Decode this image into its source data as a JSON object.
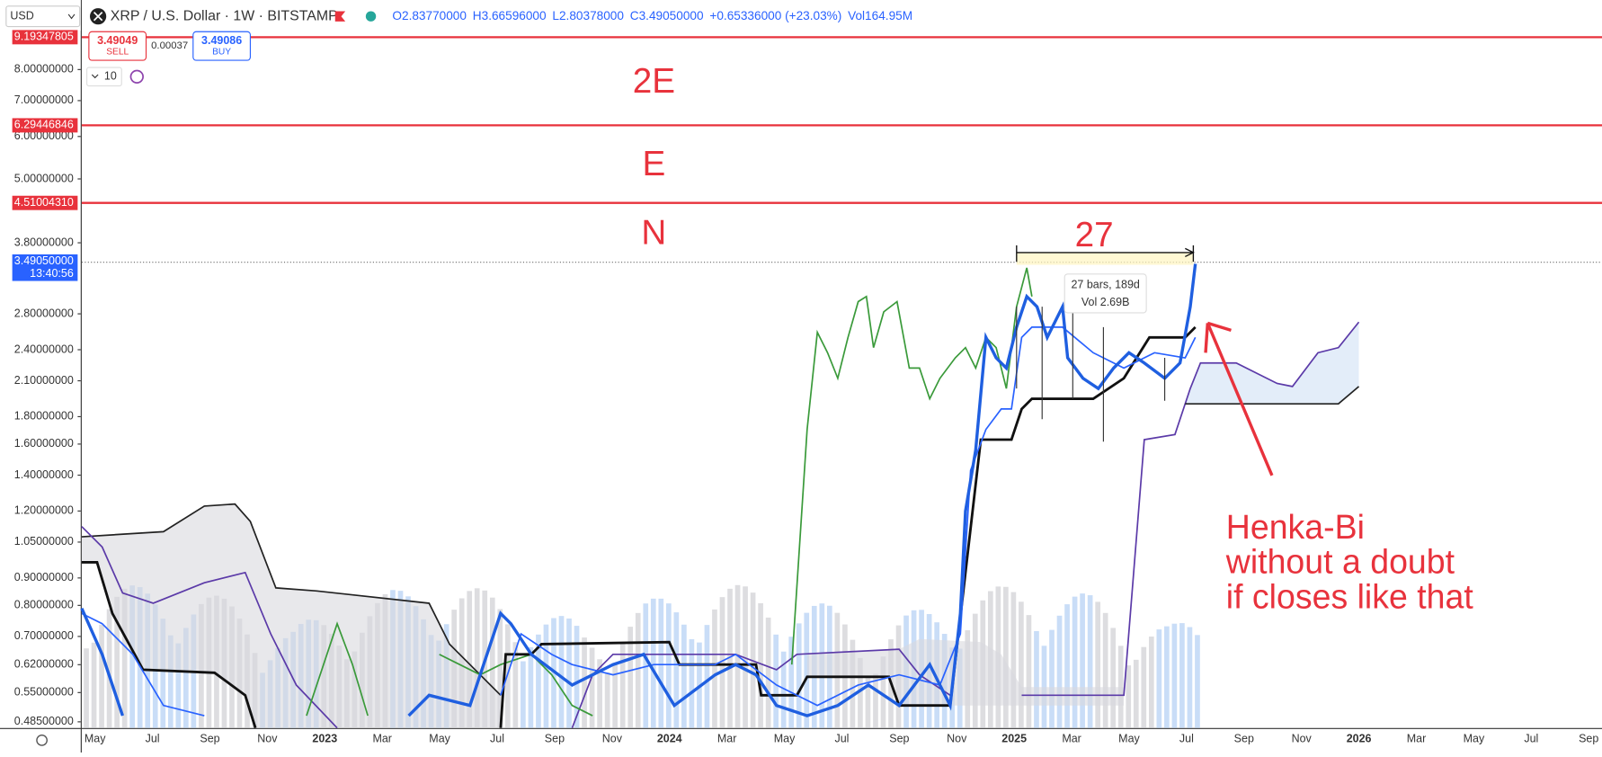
{
  "toolbar": {
    "currency": "USD",
    "symbol": "XRP / U.S. Dollar · 1W · BITSTAMP",
    "ohlc": [
      "O2.83770000",
      "H3.66596000",
      "L2.80378000",
      "C3.49050000",
      "+0.65336000 (+23.03%)",
      "Vol164.95M"
    ]
  },
  "trade": {
    "sell_price": "3.49049",
    "sell": "SELL",
    "spread": "0.00037",
    "buy_price": "3.49086",
    "buy": "BUY",
    "quantity": "10"
  },
  "price_axis": {
    "log": true,
    "ticks": [
      {
        "value": 8,
        "label": "8.00000000"
      },
      {
        "value": 7,
        "label": "7.00000000"
      },
      {
        "value": 6,
        "label": "6.00000000"
      },
      {
        "value": 5,
        "label": "5.00000000"
      },
      {
        "value": 3.8,
        "label": "3.80000000"
      },
      {
        "value": 2.8,
        "label": "2.80000000"
      },
      {
        "value": 2.4,
        "label": "2.40000000"
      },
      {
        "value": 2.1,
        "label": "2.10000000"
      },
      {
        "value": 1.8,
        "label": "1.80000000"
      },
      {
        "value": 1.6,
        "label": "1.60000000"
      },
      {
        "value": 1.4,
        "label": "1.40000000"
      },
      {
        "value": 1.2,
        "label": "1.20000000"
      },
      {
        "value": 1.05,
        "label": "1.05000000"
      },
      {
        "value": 0.9,
        "label": "0.90000000"
      },
      {
        "value": 0.8,
        "label": "0.80000000"
      },
      {
        "value": 0.7,
        "label": "0.70000000"
      },
      {
        "value": 0.62,
        "label": "0.62000000"
      },
      {
        "value": 0.55,
        "label": "0.55000000"
      },
      {
        "value": 0.485,
        "label": "0.48500000"
      }
    ],
    "levels": [
      {
        "value": 9.19347805,
        "label": "9.19347805",
        "annotation": "2E"
      },
      {
        "value": 6.29446846,
        "label": "6.29446846",
        "annotation": "E"
      },
      {
        "value": 4.5100431,
        "label": "4.51004310",
        "annotation": "N"
      }
    ],
    "current": {
      "value": 3.4905,
      "label": "3.49050000",
      "countdown": "13:40:56"
    }
  },
  "time_axis": [
    "May",
    "Jul",
    "Sep",
    "Nov",
    "2023",
    "Mar",
    "May",
    "Jul",
    "Sep",
    "Nov",
    "2024",
    "Mar",
    "May",
    "Jul",
    "Sep",
    "Nov",
    "2025",
    "Mar",
    "May",
    "Jul",
    "Sep",
    "Nov",
    "2026",
    "Mar",
    "May",
    "Jul",
    "Sep"
  ],
  "measure": {
    "count_label": "27",
    "bars": "27 bars, 189d",
    "volume": "Vol 2.69B"
  },
  "note": [
    "Henka-Bi",
    "without a doubt",
    "if closes like that"
  ]
}
